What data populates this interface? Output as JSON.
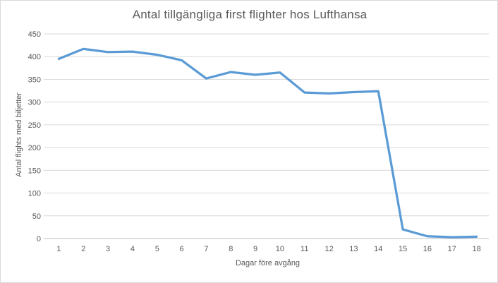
{
  "chart_data": {
    "type": "line",
    "title": "Antal tillgängliga first flighter hos Lufthansa",
    "xlabel": "Dagar före avgång",
    "ylabel": "Antal flights med biljetter",
    "categories": [
      1,
      2,
      3,
      4,
      5,
      6,
      7,
      8,
      9,
      10,
      11,
      12,
      13,
      14,
      15,
      16,
      17,
      18
    ],
    "values": [
      395,
      417,
      410,
      411,
      404,
      392,
      352,
      366,
      360,
      365,
      321,
      319,
      322,
      324,
      20,
      5,
      3,
      4
    ],
    "ylim": [
      0,
      450
    ],
    "ytick_step": 50,
    "grid": true,
    "legend": "none",
    "colors": {
      "line": "#5B9BD5",
      "gridline": "#D9D9D9",
      "axis": "#BFBFBF",
      "text": "#595959",
      "border": "#D9D9D9",
      "background": "#FFFFFF"
    }
  }
}
